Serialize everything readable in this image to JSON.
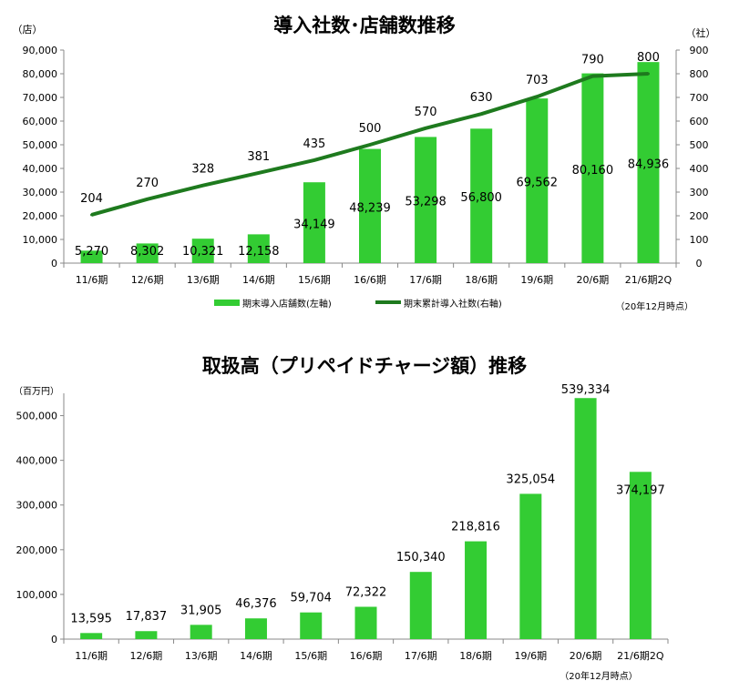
{
  "chart_data": [
    {
      "type": "bar",
      "title": "導入社数･店舗数推移",
      "categories": [
        "11/6期",
        "12/6期",
        "13/6期",
        "14/6期",
        "15/6期",
        "16/6期",
        "17/6期",
        "18/6期",
        "19/6期",
        "20/6期",
        "21/6期2Q"
      ],
      "y_unit_left": "（店）",
      "y_unit_right": "（社）",
      "ylim_left": [
        0,
        90000
      ],
      "yticks_left": [
        "0",
        "10,000",
        "20,000",
        "30,000",
        "40,000",
        "50,000",
        "60,000",
        "70,000",
        "80,000",
        "90,000"
      ],
      "ylim_right": [
        0,
        900
      ],
      "yticks_right": [
        "0",
        "100",
        "200",
        "300",
        "400",
        "500",
        "600",
        "700",
        "800",
        "900"
      ],
      "series": [
        {
          "name": "期末導入店舗数(左軸)",
          "type": "bar",
          "axis": "left",
          "color": "#33cc33",
          "values": [
            5270,
            8302,
            10321,
            12158,
            34149,
            48239,
            53298,
            56800,
            69562,
            80160,
            84936
          ],
          "labels": [
            "5,270",
            "8,302",
            "10,321",
            "12,158",
            "34,149",
            "48,239",
            "53,298",
            "56,800",
            "69,562",
            "80,160",
            "84,936"
          ]
        },
        {
          "name": "期末累計導入社数(右軸)",
          "type": "line",
          "axis": "right",
          "color": "#1e7a1e",
          "values": [
            204,
            270,
            328,
            381,
            435,
            500,
            570,
            630,
            703,
            790,
            800
          ],
          "labels": [
            "204",
            "270",
            "328",
            "381",
            "435",
            "500",
            "570",
            "630",
            "703",
            "790",
            "800"
          ]
        }
      ],
      "legend_position": "bottom",
      "note": "（20年12月時点）",
      "grid": false
    },
    {
      "type": "bar",
      "title": "取扱高（プリペイドチャージ額）推移",
      "categories": [
        "11/6期",
        "12/6期",
        "13/6期",
        "14/6期",
        "15/6期",
        "16/6期",
        "17/6期",
        "18/6期",
        "19/6期",
        "20/6期",
        "21/6期2Q"
      ],
      "y_unit": "（百万円）",
      "ylim": [
        0,
        550000
      ],
      "yticks": [
        "0",
        "100,000",
        "200,000",
        "300,000",
        "400,000",
        "500,000"
      ],
      "series": [
        {
          "name": "",
          "color": "#33cc33",
          "values": [
            13595,
            17837,
            31905,
            46376,
            59704,
            72322,
            150340,
            218816,
            325054,
            539334,
            374197
          ],
          "labels": [
            "13,595",
            "17,837",
            "31,905",
            "46,376",
            "59,704",
            "72,322",
            "150,340",
            "218,816",
            "325,054",
            "539,334",
            "374,197"
          ]
        }
      ],
      "note": "（20年12月時点）",
      "grid": false
    }
  ]
}
